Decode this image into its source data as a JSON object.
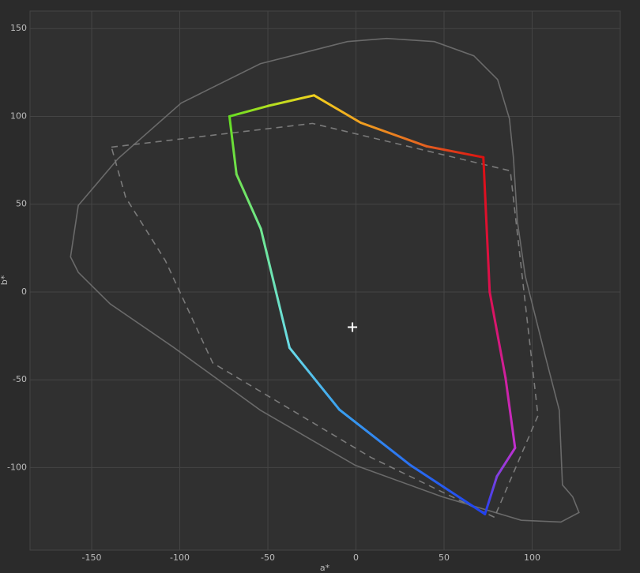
{
  "chart_data": {
    "type": "line",
    "xlabel": "a*",
    "ylabel": "b*",
    "xlim": [
      -185,
      150
    ],
    "ylim": [
      -147,
      160
    ],
    "xticks": [
      -150,
      -100,
      -50,
      0,
      50,
      100
    ],
    "yticks": [
      -100,
      -50,
      0,
      50,
      100,
      150
    ],
    "grid": true,
    "series": [
      {
        "color": "#6a6a6a",
        "style": "solid",
        "closed": true,
        "x": [
          17.5,
          -4.9,
          -54.3,
          -99.2,
          -135,
          -157.6,
          -162,
          -157.6,
          -139.6,
          -103.7,
          -54.3,
          -0.4,
          48.9,
          93.8,
          116.3,
          126.6,
          123,
          117.2,
          115.4,
          107.3,
          96.1,
          91.6,
          89.4,
          87.1,
          80.4,
          66.9,
          44.5
        ],
        "values": [
          144.4,
          142.6,
          130,
          107.6,
          76,
          49.3,
          20,
          11.2,
          -6.7,
          -31.4,
          -67.3,
          -98.7,
          -116.6,
          -130,
          -131,
          -125.6,
          -116.6,
          -109.9,
          -67.3,
          -35.9,
          9,
          40.4,
          76.2,
          98.7,
          121,
          134.5,
          142.6
        ]
      },
      {
        "color": "#7a7a7a",
        "style": "dashed",
        "closed": true,
        "x": [
          -138.8,
          -24.7,
          87.6,
          103.3,
          78.6,
          8.5,
          -81.3,
          -108.2,
          -130.7
        ],
        "values": [
          82.5,
          96,
          69,
          -70.4,
          -128.3,
          -94.2,
          -40.4,
          17.9,
          53.8
        ]
      },
      {
        "style": "gradient",
        "closed": true,
        "x": [
          -71.8,
          -49.8,
          -23.8,
          2.7,
          40,
          72.3,
          75.9,
          84.9,
          90.3,
          80,
          73.2,
          31,
          -9.4,
          -37.7,
          -54,
          -67.8
        ],
        "values": [
          100,
          106,
          112,
          96.4,
          83,
          76.7,
          0,
          -49,
          -88.8,
          -105,
          -126.5,
          -98.7,
          -67,
          -31.8,
          36,
          67
        ],
        "colors": [
          "#66dd22",
          "#b0e020",
          "#f2d21e",
          "#f0a020",
          "#e46020",
          "#dd1010",
          "#dd1050",
          "#d020a0",
          "#c030d0",
          "#8040e0",
          "#2040f0",
          "#2a70f0",
          "#3aa0f0",
          "#6adce8",
          "#70e890",
          "#70e050"
        ]
      }
    ],
    "marker": {
      "x": -2,
      "y": -20,
      "color": "#ffffff"
    }
  }
}
